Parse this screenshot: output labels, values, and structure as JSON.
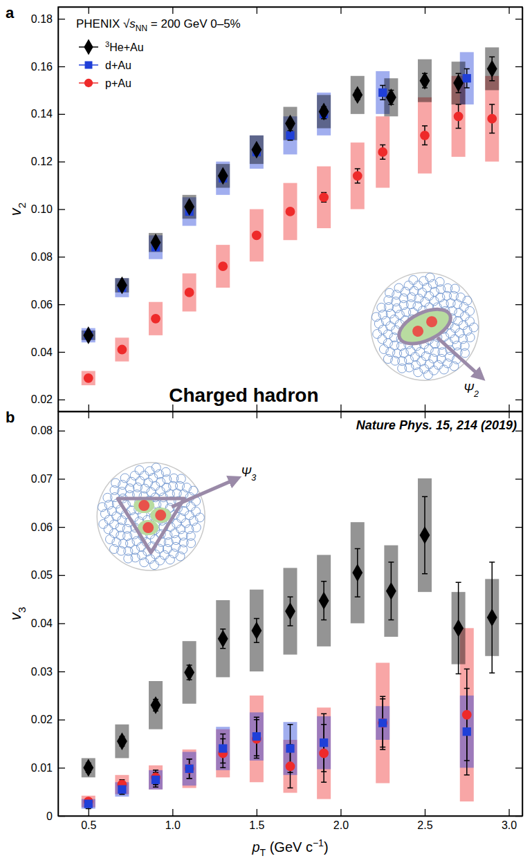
{
  "chart_data": [
    {
      "type": "scatter",
      "panel_label": "a",
      "title": "PHENIX √sNN = 200 GeV 0–5%",
      "y_label": "v2",
      "annotations": [
        "Charged hadron",
        "Ψ2"
      ],
      "xlim": [
        0.32,
        3.08
      ],
      "xticks": [
        0.5,
        1,
        1.5,
        2,
        2.5,
        3
      ],
      "ylim": [
        0.015,
        0.185
      ],
      "yticks": [
        0.02,
        0.04,
        0.06,
        0.08,
        {
          "value": 0.1,
          "label": "0.10"
        },
        0.12,
        0.14,
        0.16,
        0.18
      ],
      "tick_labels": "y",
      "legend": "upper left",
      "series": [
        {
          "name": "3He+Au",
          "color": "#000000",
          "marker": "diamond",
          "x": [
            0.5,
            0.7,
            0.9,
            1.1,
            1.3,
            1.5,
            1.7,
            1.9,
            2.1,
            2.3,
            2.5,
            2.7,
            2.9
          ],
          "values": [
            0.047,
            0.068,
            0.086,
            0.101,
            0.114,
            0.125,
            0.136,
            0.141,
            0.148,
            0.147,
            0.154,
            0.153,
            0.159
          ],
          "errors": [
            0.001,
            0.001,
            0.001,
            0.001,
            0.001,
            0.001,
            0.001,
            0.002,
            0.002,
            0.003,
            0.003,
            0.004,
            0.005
          ],
          "sys_errors": [
            0.002,
            0.003,
            0.004,
            0.005,
            0.005,
            0.006,
            0.007,
            0.007,
            0.008,
            0.008,
            0.009,
            0.009,
            0.009
          ]
        },
        {
          "name": "d+Au",
          "color": "#1f3fd8",
          "marker": "square",
          "x": [
            0.5,
            0.7,
            0.9,
            1.1,
            1.3,
            1.5,
            1.7,
            1.9,
            2.25,
            2.75
          ],
          "values": [
            0.047,
            0.067,
            0.084,
            0.099,
            0.113,
            0.124,
            0.131,
            0.14,
            0.149,
            0.155
          ],
          "errors": [
            0.001,
            0.001,
            0.001,
            0.001,
            0.001,
            0.001,
            0.002,
            0.002,
            0.003,
            0.004
          ],
          "sys_errors": [
            0.003,
            0.004,
            0.005,
            0.006,
            0.007,
            0.007,
            0.008,
            0.009,
            0.009,
            0.011
          ]
        },
        {
          "name": "p+Au",
          "color": "#ee2a2a",
          "marker": "circle",
          "x": [
            0.5,
            0.7,
            0.9,
            1.1,
            1.3,
            1.5,
            1.7,
            1.9,
            2.1,
            2.25,
            2.5,
            2.7,
            2.9
          ],
          "values": [
            0.029,
            0.041,
            0.054,
            0.065,
            0.076,
            0.089,
            0.099,
            0.105,
            0.114,
            0.124,
            0.131,
            0.139,
            0.138
          ],
          "errors": [
            0.001,
            0.001,
            0.001,
            0.001,
            0.001,
            0.001,
            0.001,
            0.002,
            0.003,
            0.003,
            0.004,
            0.005,
            0.006
          ],
          "sys_errors": [
            0.003,
            0.005,
            0.007,
            0.008,
            0.009,
            0.011,
            0.012,
            0.013,
            0.014,
            0.015,
            0.016,
            0.017,
            0.018
          ]
        }
      ]
    },
    {
      "type": "scatter",
      "panel_label": "b",
      "y_label": "v3",
      "x_label": "pT (GeV c−1)",
      "annotations": [
        "Nature Phys. 15, 214 (2019)",
        "Ψ3"
      ],
      "xlim": [
        0.32,
        3.08
      ],
      "xticks": [
        0.5,
        {
          "value": 1,
          "label": "1.0"
        },
        1.5,
        {
          "value": 2,
          "label": "2.0"
        },
        2.5,
        {
          "value": 3,
          "label": "3.0"
        }
      ],
      "ylim": [
        0,
        0.084
      ],
      "yticks": [
        0,
        0.01,
        0.02,
        0.03,
        0.04,
        0.05,
        0.06,
        0.07,
        0.08
      ],
      "series": [
        {
          "color": "#000000",
          "marker": "diamond",
          "x": [
            0.5,
            0.7,
            0.9,
            1.1,
            1.3,
            1.5,
            1.7,
            1.9,
            2.1,
            2.3,
            2.5,
            2.7,
            2.9
          ],
          "values": [
            0.01,
            0.0155,
            0.023,
            0.0298,
            0.0368,
            0.0385,
            0.0425,
            0.0447,
            0.0505,
            0.0467,
            0.0583,
            0.039,
            0.0412
          ],
          "errors": [
            0.001,
            0.001,
            0.0012,
            0.0015,
            0.002,
            0.0025,
            0.003,
            0.004,
            0.005,
            0.006,
            0.008,
            0.0095,
            0.0115
          ],
          "sys_errors": [
            0.002,
            0.0035,
            0.005,
            0.0065,
            0.008,
            0.0085,
            0.009,
            0.0095,
            0.0105,
            0.0095,
            0.0118,
            0.0075,
            0.008
          ]
        },
        {
          "color": "#1f3fd8",
          "marker": "square",
          "x": [
            0.5,
            0.7,
            0.9,
            1.1,
            1.3,
            1.5,
            1.7,
            1.9,
            2.25,
            2.75
          ],
          "values": [
            0.0025,
            0.0055,
            0.0075,
            0.0098,
            0.014,
            0.0165,
            0.014,
            0.0152,
            0.0193,
            0.0175
          ],
          "errors": [
            0.001,
            0.001,
            0.0015,
            0.002,
            0.003,
            0.004,
            0.005,
            0.006,
            0.005,
            0.009
          ],
          "sys_errors": [
            0.001,
            0.0015,
            0.002,
            0.0035,
            0.0045,
            0.005,
            0.0055,
            0.0055,
            0.0035,
            0.0075
          ]
        },
        {
          "color": "#ee2a2a",
          "marker": "circle",
          "x": [
            0.5,
            0.7,
            0.9,
            1.1,
            1.3,
            1.5,
            1.7,
            1.9,
            2.25,
            2.75
          ],
          "values": [
            0.003,
            0.0065,
            0.008,
            0.0098,
            0.013,
            0.016,
            0.0103,
            0.013,
            0.0193,
            0.021
          ],
          "errors": [
            0.0005,
            0.001,
            0.0015,
            0.002,
            0.003,
            0.004,
            0.0045,
            0.006,
            0.0055,
            0.0095
          ],
          "sys_errors": [
            0.0012,
            0.002,
            0.0025,
            0.004,
            0.005,
            0.009,
            0.0055,
            0.0095,
            0.0125,
            0.018
          ]
        }
      ]
    }
  ]
}
